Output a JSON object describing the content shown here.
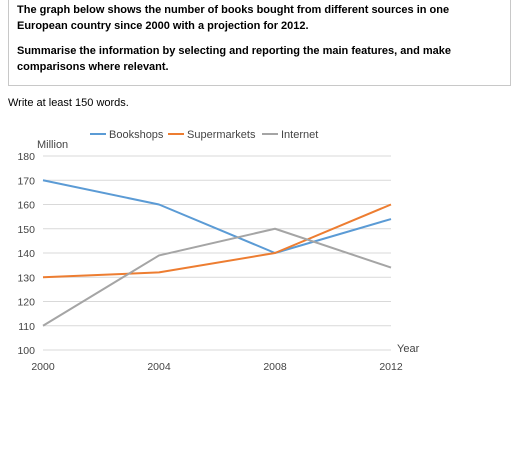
{
  "prompt": {
    "line1": "The graph below shows the number of books bought from different sources in one European country since 2000 with a projection for 2012.",
    "line2": "Summarise the information by selecting and reporting the main features, and make comparisons where relevant."
  },
  "instruction": "Write at least 150 words.",
  "chart_data": {
    "type": "line",
    "title": "",
    "ylabel": "Million",
    "xlabel": "Year",
    "x": [
      2000,
      2004,
      2008,
      2012
    ],
    "x_tick_labels": [
      "2000",
      "2004",
      "2008",
      "2012"
    ],
    "ylim": [
      100,
      180
    ],
    "y_ticks": [
      100,
      110,
      120,
      130,
      140,
      150,
      160,
      170,
      180
    ],
    "y_tick_labels": [
      "100",
      "110",
      "120",
      "130",
      "140",
      "150",
      "160",
      "170",
      "180"
    ],
    "grid": true,
    "legend_position": "top",
    "series": [
      {
        "name": "Bookshops",
        "color": "#5b9bd5",
        "values": [
          170,
          160,
          140,
          154
        ]
      },
      {
        "name": "Supermarkets",
        "color": "#ed7d31",
        "values": [
          130,
          132,
          140,
          160
        ]
      },
      {
        "name": "Internet",
        "color": "#a5a5a5",
        "values": [
          110,
          139,
          150,
          134
        ]
      }
    ]
  }
}
